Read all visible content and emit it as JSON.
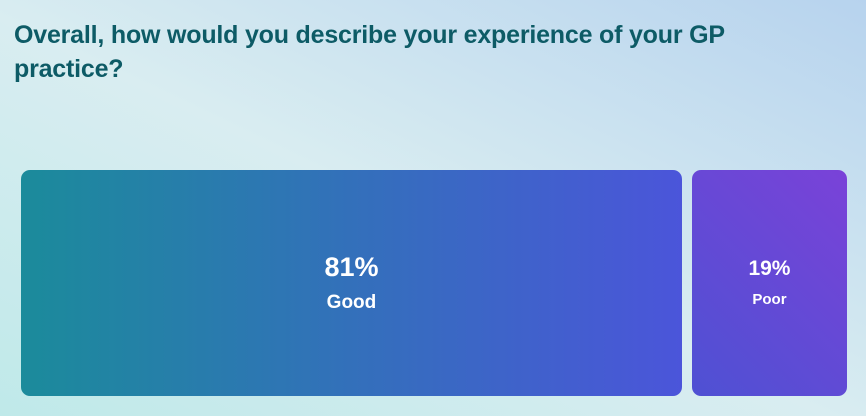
{
  "page": {
    "title": "Overall, how would you describe your experience of your GP practice?"
  },
  "theme": {
    "bg-top-right": "#b7d3ee",
    "bg-middle": "#d9edf1",
    "bg-bottom-left": "#bfe9e9",
    "title-color": "#0d5b66",
    "bar-label-color": "#ffffff"
  },
  "chart_data": {
    "type": "bar",
    "orientation": "horizontal-proportional",
    "title": "Overall, how would you describe your experience of your GP practice?",
    "categories": [
      "Good",
      "Poor"
    ],
    "values": [
      81,
      19
    ],
    "unit": "%",
    "value_range": [
      0,
      100
    ],
    "labels": [
      {
        "value": "81%",
        "category": "Good"
      },
      {
        "value": "19%",
        "category": "Poor"
      }
    ],
    "bar_gradients": [
      {
        "angle": "90deg",
        "from": "#1b8b9b",
        "to": "#4b55da"
      },
      {
        "angle": "45deg",
        "from": "#4e51d3",
        "to": "#7a42d8"
      }
    ],
    "legend": "none",
    "axes": "none",
    "grid": false
  }
}
